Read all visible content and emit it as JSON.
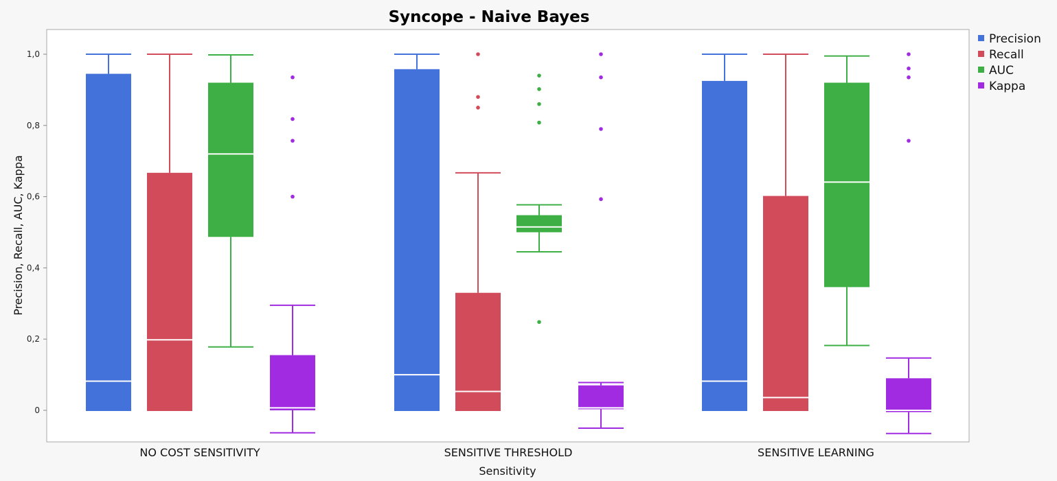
{
  "chart_data": {
    "type": "boxplot",
    "title": "Syncope - Naive Bayes",
    "xlabel": "Sensitivity",
    "ylabel": "Precision, Recall, AUC, Kappa",
    "ylim": [
      -0.08,
      1.07
    ],
    "yticks": [
      0,
      0.2,
      0.4,
      0.6,
      0.8,
      1.0
    ],
    "ytick_labels": [
      "0",
      "0,2",
      "0,4",
      "0,6",
      "0,8",
      "1,0"
    ],
    "categories": [
      "NO COST SENSITIVITY",
      "SENSITIVE THRESHOLD",
      "SENSITIVE LEARNING"
    ],
    "legend_position": "right",
    "grid": false,
    "series": [
      {
        "name": "Precision",
        "color": "#4472db",
        "boxes": [
          {
            "whisker_low": 0.0,
            "q1": 0.0,
            "median": 0.082,
            "q3": 0.945,
            "whisker_high": 1.0,
            "outliers": []
          },
          {
            "whisker_low": 0.0,
            "q1": 0.0,
            "median": 0.1,
            "q3": 0.958,
            "whisker_high": 1.0,
            "outliers": []
          },
          {
            "whisker_low": 0.0,
            "q1": 0.0,
            "median": 0.082,
            "q3": 0.925,
            "whisker_high": 1.0,
            "outliers": []
          }
        ]
      },
      {
        "name": "Recall",
        "color": "#d24b5a",
        "boxes": [
          {
            "whisker_low": 0.0,
            "q1": 0.0,
            "median": 0.198,
            "q3": 0.667,
            "whisker_high": 1.0,
            "outliers": []
          },
          {
            "whisker_low": 0.0,
            "q1": 0.0,
            "median": 0.053,
            "q3": 0.33,
            "whisker_high": 0.667,
            "outliers": [
              0.85,
              0.88,
              1.0
            ]
          },
          {
            "whisker_low": 0.0,
            "q1": 0.0,
            "median": 0.036,
            "q3": 0.602,
            "whisker_high": 1.0,
            "outliers": []
          }
        ]
      },
      {
        "name": "AUC",
        "color": "#3daf44",
        "boxes": [
          {
            "whisker_low": 0.178,
            "q1": 0.487,
            "median": 0.72,
            "q3": 0.92,
            "whisker_high": 0.998,
            "outliers": []
          },
          {
            "whisker_low": 0.445,
            "q1": 0.5,
            "median": 0.515,
            "q3": 0.548,
            "whisker_high": 0.577,
            "outliers": [
              0.248,
              0.808,
              0.86,
              0.902,
              0.94
            ]
          },
          {
            "whisker_low": 0.182,
            "q1": 0.346,
            "median": 0.641,
            "q3": 0.92,
            "whisker_high": 0.995,
            "outliers": []
          }
        ]
      },
      {
        "name": "Kappa",
        "color": "#a02be0",
        "boxes": [
          {
            "whisker_low": -0.063,
            "q1": 0.0,
            "median": 0.007,
            "q3": 0.155,
            "whisker_high": 0.295,
            "outliers": [
              0.6,
              0.757,
              0.818,
              0.935
            ]
          },
          {
            "whisker_low": -0.05,
            "q1": 0.003,
            "median": 0.007,
            "q3": 0.07,
            "whisker_high": 0.078,
            "outliers": [
              0.593,
              0.79,
              0.935,
              1.0
            ]
          },
          {
            "whisker_low": -0.065,
            "q1": -0.005,
            "median": 0.0,
            "q3": 0.09,
            "whisker_high": 0.147,
            "outliers": [
              0.757,
              0.935,
              0.96,
              1.0
            ]
          }
        ]
      }
    ]
  }
}
